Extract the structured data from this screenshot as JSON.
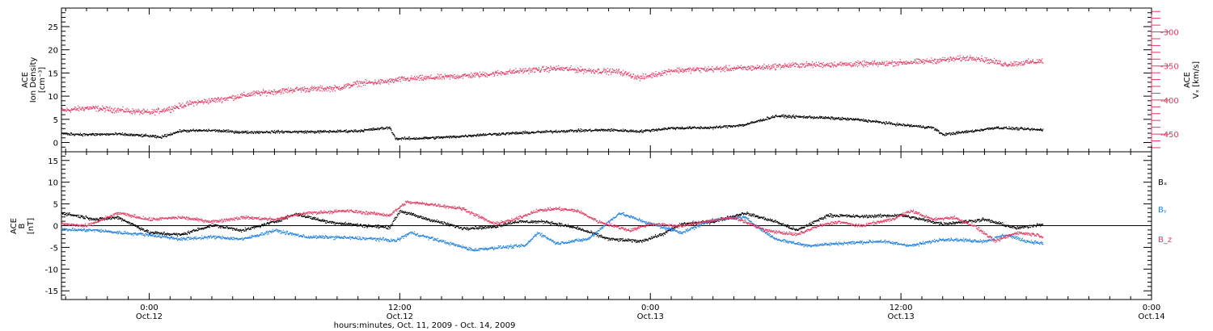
{
  "chart_data": [
    {
      "type": "scatter",
      "panel": "ion-density-and-vx",
      "left_axis": {
        "label_lines": [
          "ACE",
          "Ion Density",
          "[cm⁻³]"
        ],
        "ylim": [
          -2,
          29
        ],
        "ticks": [
          0,
          5,
          10,
          15,
          20,
          25
        ]
      },
      "right_axis": {
        "label_lines": [
          "ACE",
          "Vₓ [km/s]"
        ],
        "ylim": [
          -476,
          -265
        ],
        "ticks": [
          -450,
          -400,
          -350,
          -300
        ],
        "color": "#e6375f"
      },
      "series": [
        {
          "axis": "left",
          "color": "#000000",
          "points": [
            [
              -4.2,
              2.0
            ],
            [
              -3,
              1.8
            ],
            [
              -1.5,
              1.9
            ],
            [
              0,
              1.5
            ],
            [
              0.5,
              1.2
            ],
            [
              1.5,
              2.6
            ],
            [
              3,
              2.7
            ],
            [
              4.5,
              2.3
            ],
            [
              6,
              2.4
            ],
            [
              8,
              2.4
            ],
            [
              10,
              2.6
            ],
            [
              11.5,
              3.3
            ],
            [
              11.8,
              0.9
            ],
            [
              13,
              1.0
            ],
            [
              14.5,
              1.3
            ],
            [
              16,
              1.8
            ],
            [
              18,
              2.2
            ],
            [
              20,
              2.6
            ],
            [
              22,
              2.8
            ],
            [
              23.5,
              2.5
            ],
            [
              25,
              3.2
            ],
            [
              27,
              3.3
            ],
            [
              28.5,
              3.9
            ],
            [
              30,
              5.8
            ],
            [
              32,
              5.5
            ],
            [
              34,
              5.0
            ],
            [
              36,
              3.9
            ],
            [
              37.5,
              3.3
            ],
            [
              38,
              1.8
            ],
            [
              39.5,
              2.6
            ],
            [
              40.5,
              3.3
            ],
            [
              42.8,
              2.8
            ]
          ]
        },
        {
          "axis": "right",
          "color": "#e6375f",
          "points": [
            [
              -4.2,
              -415
            ],
            [
              -3,
              -411
            ],
            [
              -1.5,
              -414
            ],
            [
              0,
              -418
            ],
            [
              1,
              -412
            ],
            [
              2,
              -404
            ],
            [
              3.5,
              -398
            ],
            [
              5,
              -390
            ],
            [
              7,
              -384
            ],
            [
              9,
              -382
            ],
            [
              10,
              -375
            ],
            [
              11.5,
              -372
            ],
            [
              12,
              -369
            ],
            [
              14,
              -366
            ],
            [
              16,
              -362
            ],
            [
              18,
              -356
            ],
            [
              19.5,
              -353
            ],
            [
              21,
              -356
            ],
            [
              22.5,
              -358
            ],
            [
              23.5,
              -367
            ],
            [
              25,
              -356
            ],
            [
              27,
              -354
            ],
            [
              29,
              -352
            ],
            [
              31,
              -348
            ],
            [
              33,
              -347
            ],
            [
              35,
              -346
            ],
            [
              37,
              -343
            ],
            [
              39.5,
              -337
            ],
            [
              41,
              -347
            ],
            [
              42.8,
              -342
            ]
          ]
        }
      ]
    },
    {
      "type": "scatter",
      "panel": "imf-b",
      "left_axis": {
        "label_lines": [
          "ACE",
          "B",
          "[nT]"
        ],
        "ylim": [
          -17,
          17
        ],
        "ticks": [
          -15,
          -10,
          -5,
          0,
          5,
          10,
          15
        ]
      },
      "legend": [
        {
          "label": "Bₓ",
          "color": "#000000"
        },
        {
          "label": "Bᵧ",
          "color": "#1e7fe0"
        },
        {
          "label": "B_z",
          "color": "#e6375f"
        }
      ],
      "series": [
        {
          "name": "Bₓ",
          "color": "#000000",
          "points": [
            [
              -4.2,
              3.0
            ],
            [
              -2.5,
              1.5
            ],
            [
              -1.5,
              2.0
            ],
            [
              0,
              -1.5
            ],
            [
              1.5,
              -2.0
            ],
            [
              3,
              0.2
            ],
            [
              4.5,
              -1.0
            ],
            [
              6,
              1.0
            ],
            [
              7,
              2.8
            ],
            [
              8.5,
              1.0
            ],
            [
              10,
              0.2
            ],
            [
              11.5,
              -0.3
            ],
            [
              12,
              3.5
            ],
            [
              13,
              2.0
            ],
            [
              15,
              -0.5
            ],
            [
              16.5,
              -0.2
            ],
            [
              17.5,
              1.0
            ],
            [
              19,
              1.0
            ],
            [
              20.5,
              -0.5
            ],
            [
              22,
              -3.0
            ],
            [
              23.5,
              -3.5
            ],
            [
              24.5,
              -2.0
            ],
            [
              25.5,
              0.5
            ],
            [
              27,
              1.0
            ],
            [
              28.5,
              3.0
            ],
            [
              30,
              1.0
            ],
            [
              31,
              -1.0
            ],
            [
              32.5,
              2.5
            ],
            [
              34,
              2.2
            ],
            [
              36,
              2.5
            ],
            [
              38,
              0.5
            ],
            [
              40,
              1.5
            ],
            [
              41.5,
              -0.5
            ],
            [
              42.8,
              0.5
            ]
          ]
        },
        {
          "name": "Bᵧ",
          "color": "#1e7fe0",
          "points": [
            [
              -4.2,
              -0.8
            ],
            [
              -2.5,
              -1.0
            ],
            [
              -1.5,
              -1.5
            ],
            [
              0,
              -2.0
            ],
            [
              1.5,
              -3.0
            ],
            [
              3,
              -2.5
            ],
            [
              4.5,
              -3.0
            ],
            [
              6,
              -1.0
            ],
            [
              7.5,
              -2.5
            ],
            [
              9,
              -2.6
            ],
            [
              11,
              -3.0
            ],
            [
              11.8,
              -3.4
            ],
            [
              12.5,
              -1.5
            ],
            [
              14,
              -3.5
            ],
            [
              15.5,
              -5.5
            ],
            [
              16.5,
              -5.0
            ],
            [
              18,
              -4.5
            ],
            [
              18.6,
              -1.5
            ],
            [
              19.5,
              -4.0
            ],
            [
              21,
              -3.0
            ],
            [
              22.5,
              3.0
            ],
            [
              24,
              0.5
            ],
            [
              25.5,
              -1.5
            ],
            [
              27,
              1.5
            ],
            [
              28.5,
              2.0
            ],
            [
              29.5,
              -1.5
            ],
            [
              30,
              -3.0
            ],
            [
              31.5,
              -4.5
            ],
            [
              33,
              -4.0
            ],
            [
              35,
              -3.5
            ],
            [
              36.5,
              -4.5
            ],
            [
              38,
              -3.0
            ],
            [
              40,
              -3.5
            ],
            [
              41,
              -2.0
            ],
            [
              42,
              -3.5
            ],
            [
              42.8,
              -4.0
            ]
          ]
        },
        {
          "name": "B_z",
          "color": "#e6375f",
          "points": [
            [
              -4.2,
              0.5
            ],
            [
              -3,
              0.0
            ],
            [
              -1.5,
              3.0
            ],
            [
              0,
              1.5
            ],
            [
              1.5,
              2.0
            ],
            [
              3,
              1.0
            ],
            [
              4.5,
              2.0
            ],
            [
              6,
              1.5
            ],
            [
              7.5,
              3.0
            ],
            [
              9.5,
              3.5
            ],
            [
              11.5,
              2.5
            ],
            [
              12.3,
              5.5
            ],
            [
              13.5,
              5.0
            ],
            [
              15,
              4.0
            ],
            [
              16.5,
              0.5
            ],
            [
              17.5,
              1.5
            ],
            [
              18.5,
              3.5
            ],
            [
              19.5,
              4.0
            ],
            [
              20.5,
              3.5
            ],
            [
              21.5,
              1.0
            ],
            [
              23,
              -1.0
            ],
            [
              24,
              0.5
            ],
            [
              25.5,
              0.0
            ],
            [
              26.5,
              1.0
            ],
            [
              28,
              2.0
            ],
            [
              29.5,
              -1.0
            ],
            [
              31,
              -2.0
            ],
            [
              32,
              0.0
            ],
            [
              33,
              1.0
            ],
            [
              34,
              0.0
            ],
            [
              35.5,
              1.5
            ],
            [
              36.5,
              3.5
            ],
            [
              37.5,
              1.5
            ],
            [
              38.5,
              2.0
            ],
            [
              39.5,
              0.0
            ],
            [
              40.5,
              -3.5
            ],
            [
              41.5,
              -1.5
            ],
            [
              42.5,
              -2.0
            ],
            [
              42.8,
              -2.5
            ]
          ]
        }
      ]
    }
  ],
  "x_axis": {
    "xlim": [
      -4.2,
      48
    ],
    "unit": "hours after 00:00 Oct. 12, 2009",
    "ticks": [
      {
        "x": 0,
        "time": "0:00",
        "date": "Oct.12"
      },
      {
        "x": 12,
        "time": "12:00",
        "date": "Oct.12"
      },
      {
        "x": 24,
        "time": "0:00",
        "date": "Oct.13"
      },
      {
        "x": 36,
        "time": "12:00",
        "date": "Oct.13"
      },
      {
        "x": 48,
        "time": "0:00",
        "date": "Oct.14"
      }
    ],
    "minor_step_hours": 1,
    "label": "hours:minutes, Oct. 11, 2009 - Oct. 14, 2009"
  }
}
